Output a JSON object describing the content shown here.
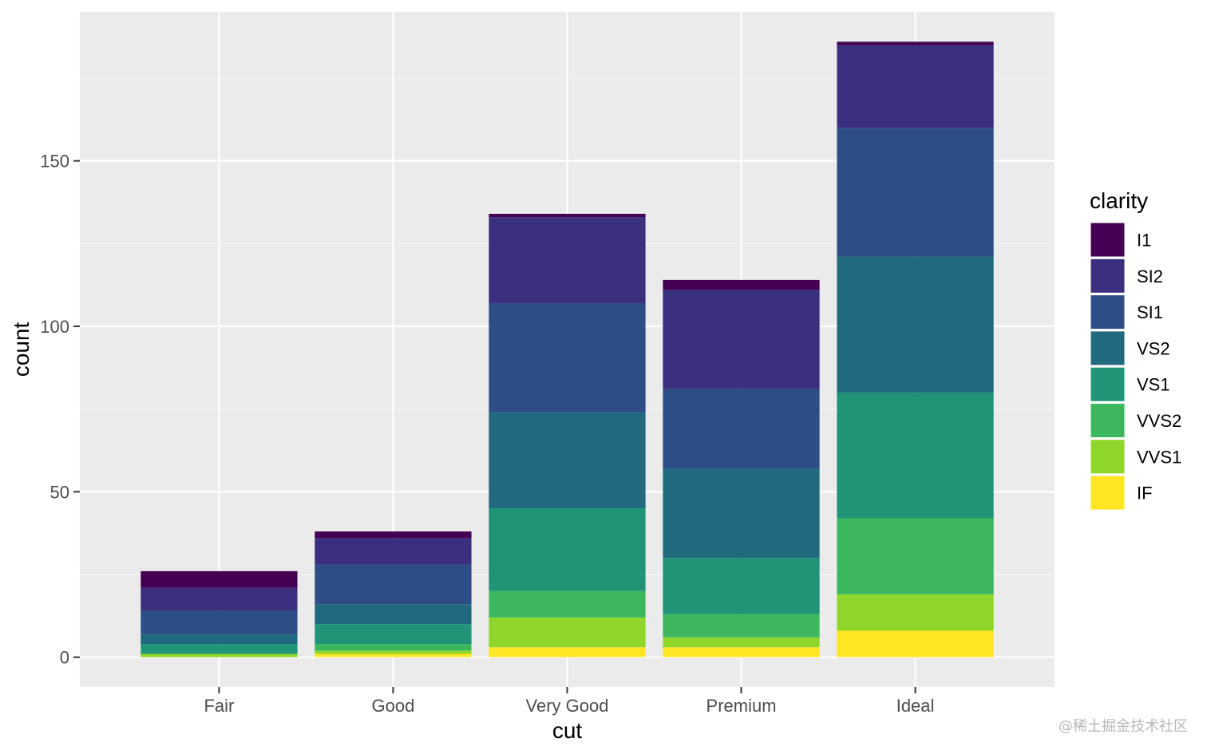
{
  "chart_data": {
    "type": "bar",
    "stacked": true,
    "xlabel": "cut",
    "ylabel": "count",
    "categories": [
      "Fair",
      "Good",
      "Very Good",
      "Premium",
      "Ideal"
    ],
    "yticks": [
      0,
      50,
      100,
      150
    ],
    "ylim": [
      -9,
      195
    ],
    "grid": true,
    "legend": {
      "title": "clarity",
      "position": "right",
      "entries": [
        "I1",
        "SI2",
        "SI1",
        "VS2",
        "VS1",
        "VVS2",
        "VVS1",
        "IF"
      ]
    },
    "series": [
      {
        "name": "I1",
        "color": "#440154",
        "values": [
          5,
          2,
          1,
          3,
          1
        ]
      },
      {
        "name": "SI2",
        "color": "#3B2F7F",
        "values": [
          7,
          8,
          26,
          30,
          25
        ]
      },
      {
        "name": "SI1",
        "color": "#2C4D85",
        "values": [
          7,
          12,
          33,
          24,
          39
        ]
      },
      {
        "name": "VS2",
        "color": "#21697E",
        "values": [
          3,
          6,
          29,
          27,
          41
        ]
      },
      {
        "name": "VS1",
        "color": "#1F9477",
        "values": [
          3,
          6,
          25,
          17,
          38
        ]
      },
      {
        "name": "VVS2",
        "color": "#3DB75D",
        "values": [
          0,
          2,
          8,
          7,
          23
        ]
      },
      {
        "name": "VVS1",
        "color": "#8FD62B",
        "values": [
          1,
          1,
          9,
          3,
          11
        ]
      },
      {
        "name": "IF",
        "color": "#FDE725",
        "values": [
          0,
          1,
          3,
          3,
          8
        ]
      }
    ]
  },
  "watermark": "@稀土掘金技术社区"
}
